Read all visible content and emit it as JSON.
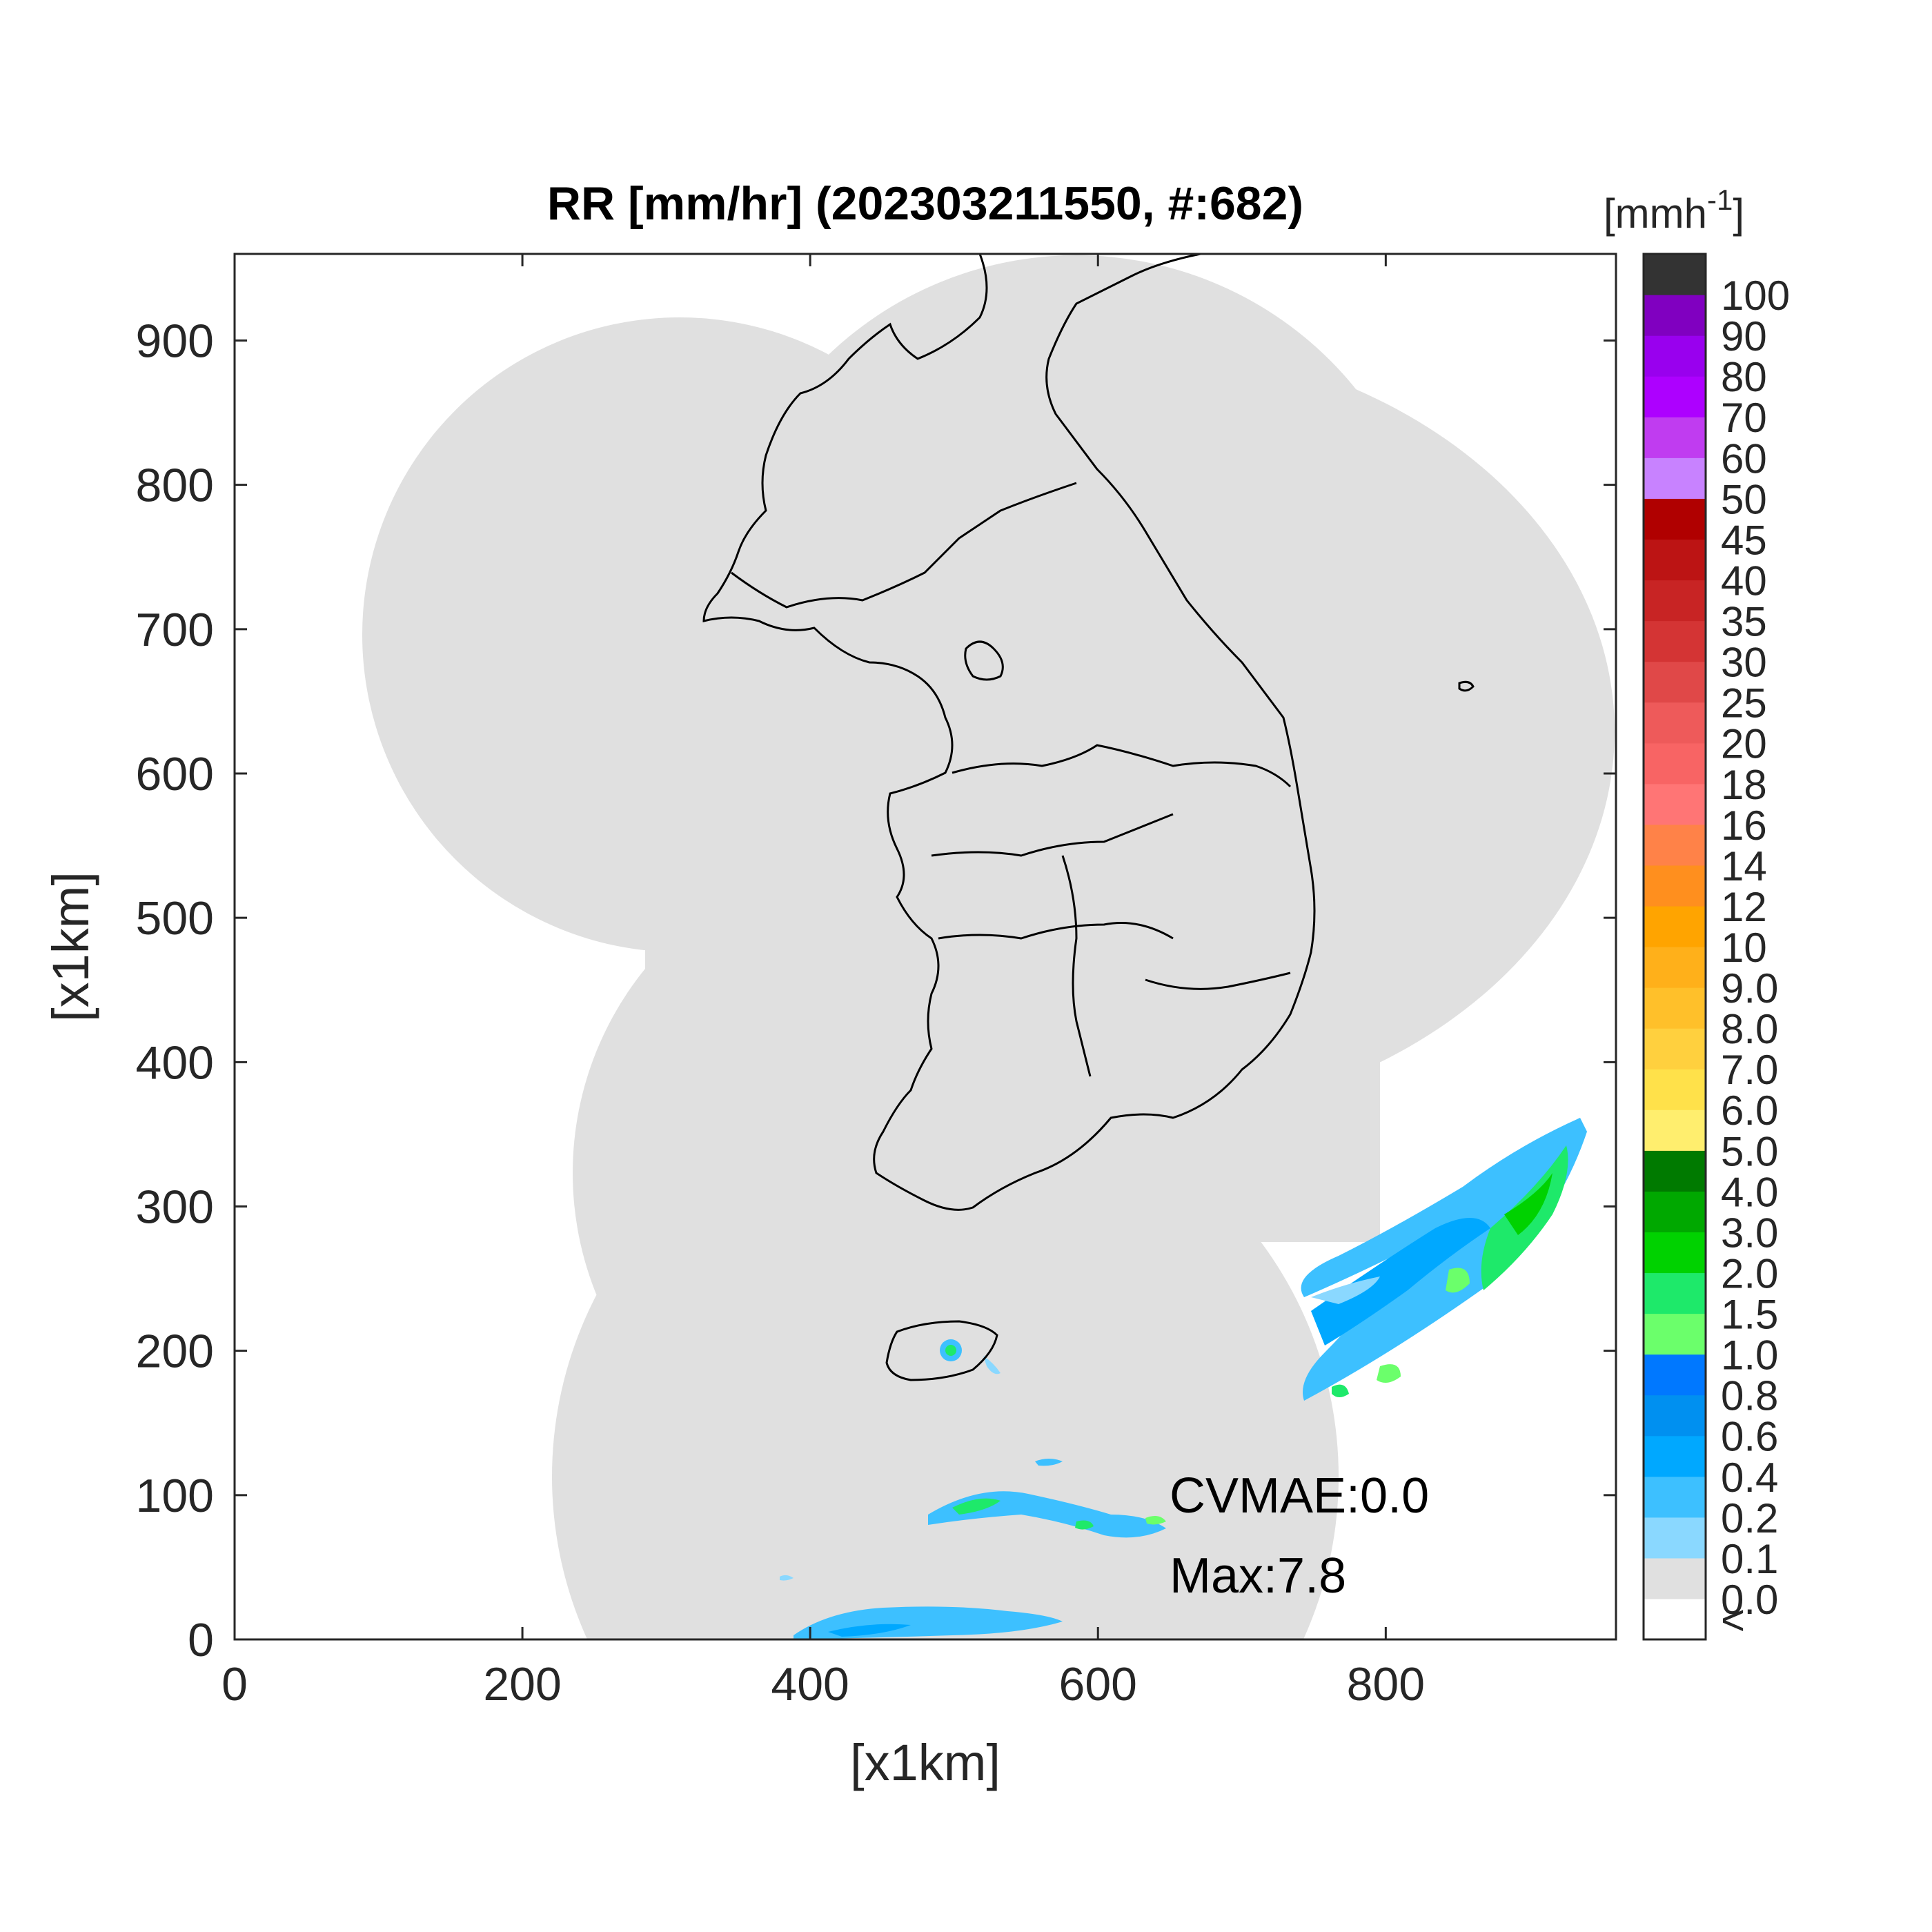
{
  "title": "RR [mm/hr] (202303211550, #:682)",
  "xlabel": "[x1km]",
  "ylabel": "[x1km]",
  "x_ticks": [
    "0",
    "200",
    "400",
    "600",
    "800"
  ],
  "y_ticks": [
    "0",
    "100",
    "200",
    "300",
    "400",
    "500",
    "600",
    "700",
    "800",
    "900"
  ],
  "colorbar": {
    "unit_label": "[mmh",
    "unit_exponent": "-1",
    "unit_close": "]",
    "labels": [
      "<",
      "0.0",
      "0.1",
      "0.2",
      "0.4",
      "0.6",
      "0.8",
      "1.0",
      "1.5",
      "2.0",
      "3.0",
      "4.0",
      "5.0",
      "6.0",
      "7.0",
      "8.0",
      "9.0",
      "10",
      "12",
      "14",
      "16",
      "18",
      "20",
      "25",
      "30",
      "35",
      "40",
      "45",
      "50",
      "60",
      "70",
      "80",
      "90",
      "100"
    ],
    "colors": [
      "#ffffff",
      "#e0e0e0",
      "#8ad8ff",
      "#3dc0ff",
      "#00a8ff",
      "#0090f0",
      "#0078ff",
      "#6bff6b",
      "#1ee96a",
      "#00d200",
      "#00a800",
      "#007a00",
      "#ffee6e",
      "#ffe14a",
      "#ffd03e",
      "#ffc02a",
      "#ffb01a",
      "#ffa400",
      "#ff8f1e",
      "#ff8248",
      "#ff7575",
      "#f86464",
      "#ee5a5a",
      "#e04848",
      "#d43434",
      "#c82424",
      "#bc1414",
      "#b00000",
      "#c882ff",
      "#c03cf0",
      "#ad00ff",
      "#9900ee",
      "#8000c0",
      "#333333"
    ]
  },
  "stats": {
    "cvmae": "CVMAE:0.0",
    "max": "Max:7.8"
  },
  "chart_data": {
    "type": "heatmap",
    "title": "RR [mm/hr] (202303211550, #:682)",
    "xlabel": "[x1km]",
    "ylabel": "[x1km]",
    "xlim": [
      0,
      960
    ],
    "ylim": [
      0,
      960
    ],
    "colorbar_unit": "mmh^-1",
    "colorbar_levels": [
      "<",
      "0.0",
      "0.1",
      "0.2",
      "0.4",
      "0.6",
      "0.8",
      "1.0",
      "1.5",
      "2.0",
      "3.0",
      "4.0",
      "5.0",
      "6.0",
      "7.0",
      "8.0",
      "9.0",
      "10",
      "12",
      "14",
      "16",
      "18",
      "20",
      "25",
      "30",
      "35",
      "40",
      "45",
      "50",
      "60",
      "70",
      "80",
      "90",
      "100"
    ],
    "annotations": [
      "CVMAE:0.0",
      "Max:7.8"
    ],
    "max_rain_rate": 7.8
  }
}
